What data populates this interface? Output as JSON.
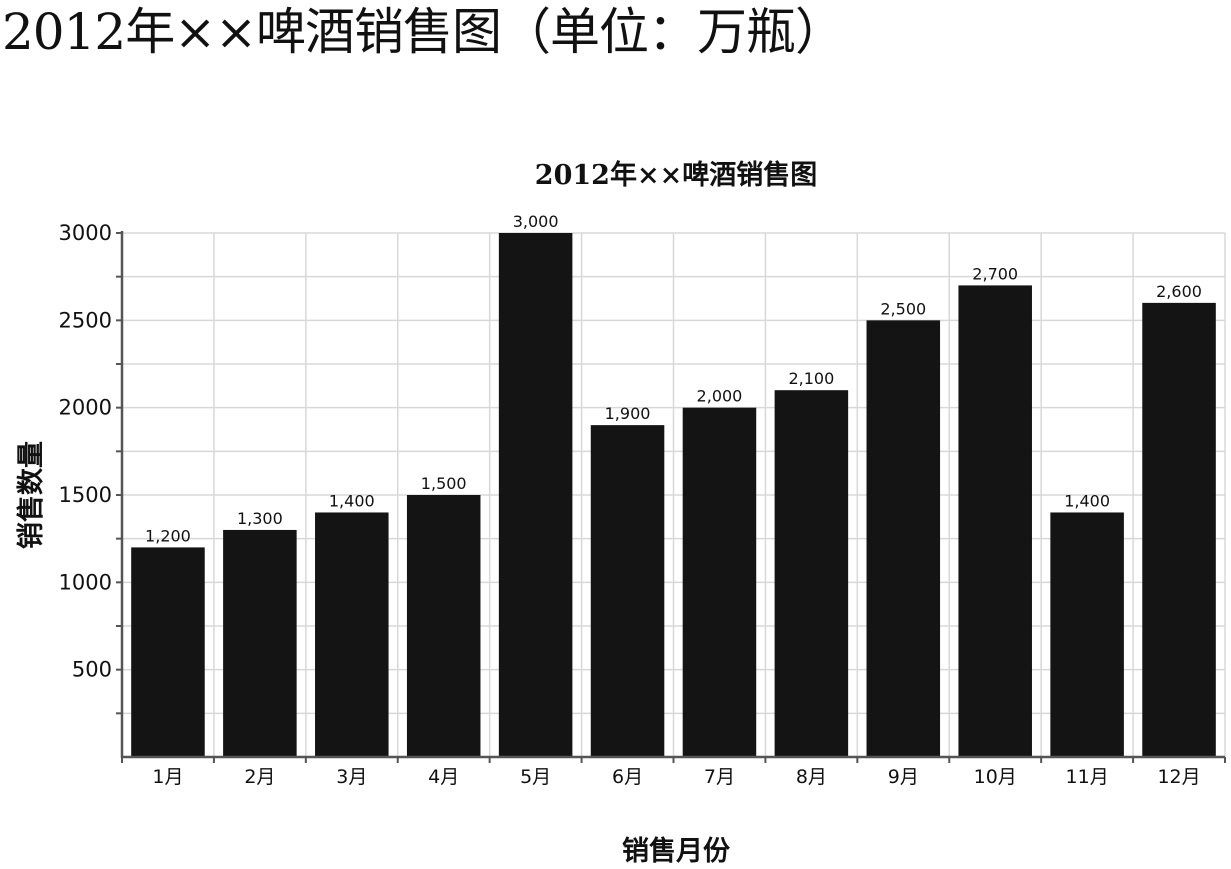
{
  "page": {
    "heading": "2012年××啤酒销售图（单位：万瓶）"
  },
  "chart_data": {
    "type": "bar",
    "title": "2012年××啤酒销售图",
    "xlabel": "销售月份",
    "ylabel": "销售数量",
    "categories": [
      "1月",
      "2月",
      "3月",
      "4月",
      "5月",
      "6月",
      "7月",
      "8月",
      "9月",
      "10月",
      "11月",
      "12月"
    ],
    "values": [
      1200,
      1300,
      1400,
      1500,
      3000,
      1900,
      2000,
      2100,
      2500,
      2700,
      1400,
      2600
    ],
    "value_labels": [
      "1,200",
      "1,300",
      "1,400",
      "1,500",
      "3,000",
      "1,900",
      "2,000",
      "2,100",
      "2,500",
      "2,700",
      "1,400",
      "2,600"
    ],
    "yticks": [
      500,
      1000,
      1500,
      2000,
      2500,
      3000
    ],
    "ylim": [
      0,
      3000
    ],
    "grid": true,
    "legend": "none",
    "bar_color": "#141414",
    "grid_color": "#d8d8d8",
    "axis_color": "#555555"
  }
}
